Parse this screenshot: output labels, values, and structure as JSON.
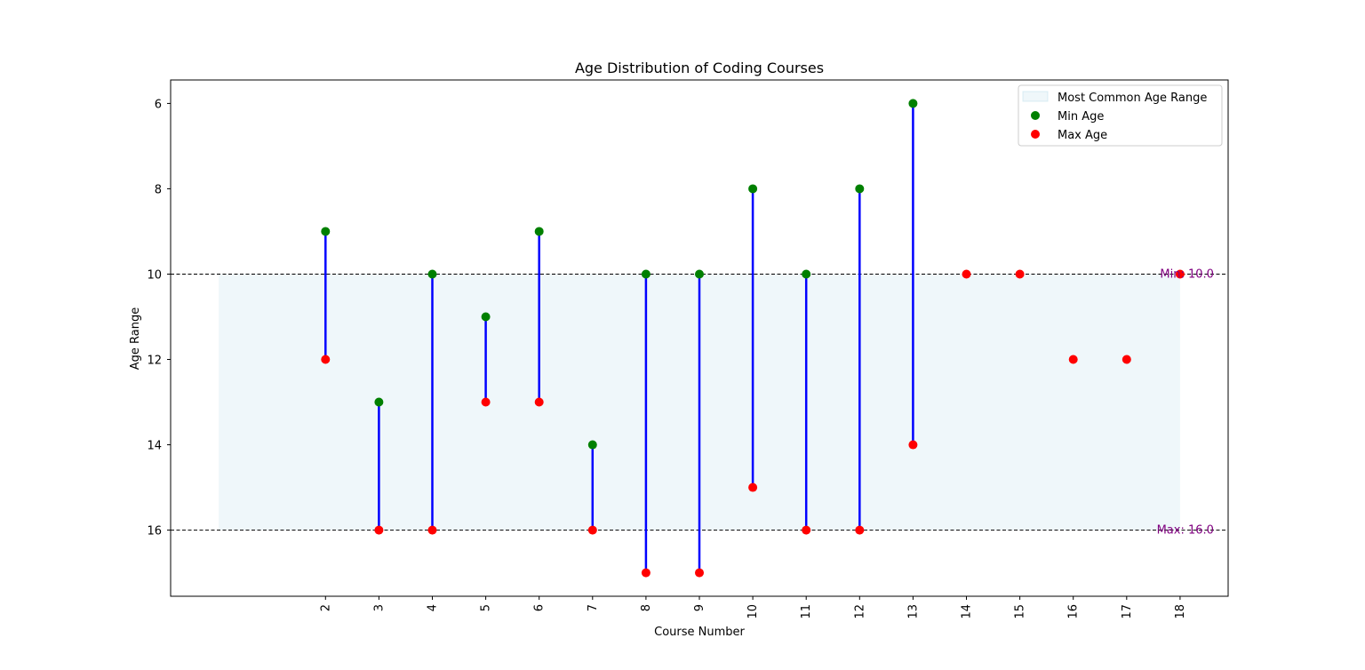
{
  "chart_data": {
    "type": "scatter",
    "title": "Age Distribution of Coding Courses",
    "xlabel": "Course Number",
    "ylabel": "Age Range",
    "x_ticks": [
      "2",
      "3",
      "4",
      "5",
      "6",
      "7",
      "8",
      "9",
      "10",
      "11",
      "12",
      "13",
      "14",
      "15",
      "16",
      "17",
      "18"
    ],
    "y_ticks": [
      "6",
      "8",
      "10",
      "12",
      "14",
      "16"
    ],
    "xlim": [
      -0.9,
      18.9
    ],
    "ylim": [
      17.55,
      5.45
    ],
    "y_inverted": true,
    "grid": false,
    "legend_position": "top-right",
    "band": {
      "name": "Most Common Age Range",
      "x_from": 0,
      "x_to": 18,
      "y_from": 10,
      "y_to": 16,
      "color": "#add8e6"
    },
    "reference_lines": [
      {
        "value": 10,
        "label": "Min: 10.0"
      },
      {
        "value": 16,
        "label": "Max: 16.0"
      }
    ],
    "series": [
      {
        "name": "Min Age",
        "color": "#008000",
        "points": [
          [
            2,
            9
          ],
          [
            3,
            13
          ],
          [
            4,
            10
          ],
          [
            5,
            11
          ],
          [
            6,
            9
          ],
          [
            7,
            14
          ],
          [
            8,
            10
          ],
          [
            9,
            10
          ],
          [
            10,
            8
          ],
          [
            11,
            10
          ],
          [
            12,
            8
          ],
          [
            13,
            6
          ]
        ]
      },
      {
        "name": "Max Age",
        "color": "#ff0000",
        "points": [
          [
            2,
            12
          ],
          [
            3,
            16
          ],
          [
            4,
            16
          ],
          [
            5,
            13
          ],
          [
            6,
            13
          ],
          [
            7,
            16
          ],
          [
            8,
            17
          ],
          [
            9,
            17
          ],
          [
            10,
            15
          ],
          [
            11,
            16
          ],
          [
            12,
            16
          ],
          [
            13,
            14
          ],
          [
            14,
            10
          ],
          [
            15,
            10
          ],
          [
            16,
            12
          ],
          [
            17,
            12
          ],
          [
            18,
            10
          ]
        ]
      }
    ],
    "ranges": [
      [
        2,
        9,
        12
      ],
      [
        3,
        13,
        16
      ],
      [
        4,
        10,
        16
      ],
      [
        5,
        11,
        13
      ],
      [
        6,
        9,
        13
      ],
      [
        7,
        14,
        16
      ],
      [
        8,
        10,
        17
      ],
      [
        9,
        10,
        17
      ],
      [
        10,
        8,
        15
      ],
      [
        11,
        10,
        16
      ],
      [
        12,
        8,
        16
      ],
      [
        13,
        6,
        14
      ]
    ],
    "range_color": "#0000ff",
    "ref_line_color": "#000000",
    "ref_label_color": "#800080"
  }
}
